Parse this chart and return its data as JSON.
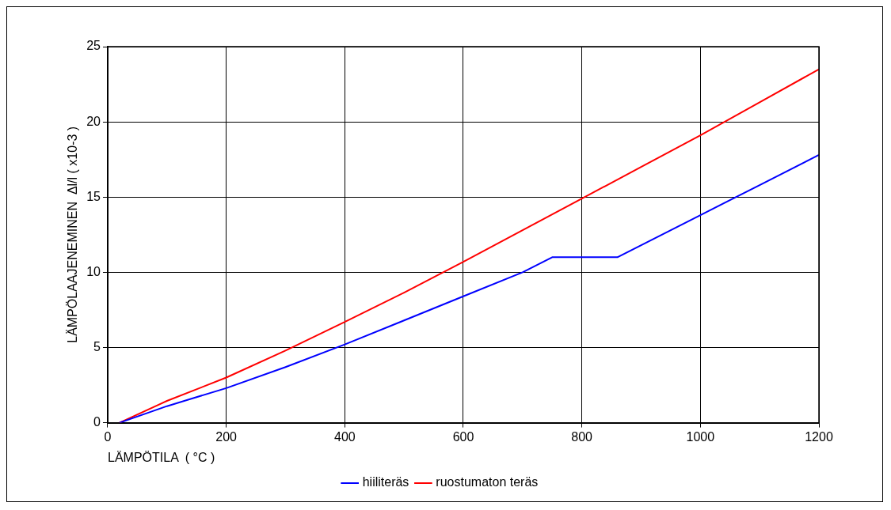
{
  "chart_data": {
    "type": "line",
    "xlabel": "LÄMPÖTILA  ( °C )",
    "ylabel": "LÄMPÖLAAJENEMINEN  Δl/l ( x10-3 )",
    "xlim": [
      0,
      1200
    ],
    "xticks": [
      0,
      200,
      400,
      600,
      800,
      1000,
      1200
    ],
    "ylim": [
      0,
      25
    ],
    "yticks": [
      0,
      5,
      10,
      15,
      20,
      25
    ],
    "grid": true,
    "legend": "bottom",
    "marker": "none",
    "line_style": "solid",
    "series": [
      {
        "name": "hiiliteräs",
        "color": "#0000ff",
        "x": [
          20,
          100,
          200,
          300,
          400,
          500,
          600,
          700,
          750,
          860,
          1000,
          1100,
          1200
        ],
        "values": [
          0,
          1.1,
          2.3,
          3.7,
          5.2,
          6.8,
          8.4,
          10.0,
          11.0,
          11.0,
          13.8,
          15.8,
          17.8
        ]
      },
      {
        "name": "ruostumaton teräs",
        "color": "#ff0000",
        "x": [
          20,
          100,
          200,
          300,
          400,
          500,
          600,
          700,
          800,
          900,
          1000,
          1100,
          1200
        ],
        "values": [
          0,
          1.45,
          3.0,
          4.8,
          6.7,
          8.65,
          10.7,
          12.8,
          14.9,
          17.0,
          19.1,
          21.3,
          23.5
        ]
      }
    ]
  }
}
